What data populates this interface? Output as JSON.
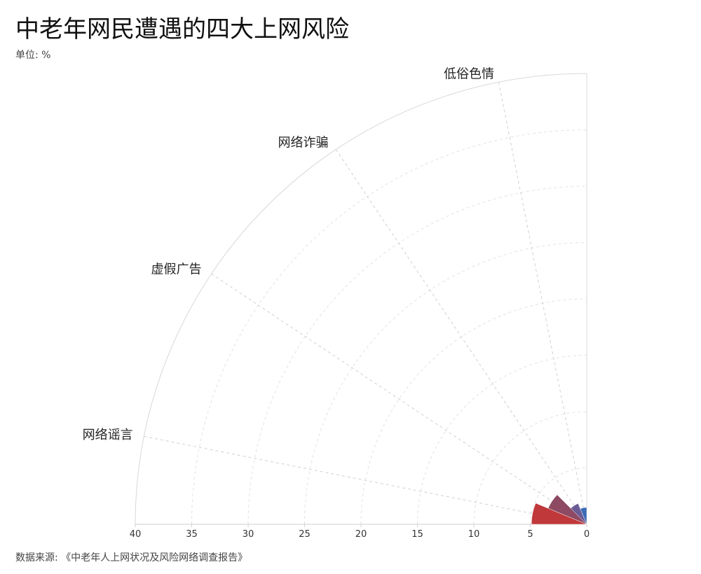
{
  "title": "中老年网民遭遇的四大上网风险",
  "unit_label": "单位: %",
  "source": "数据来源: 《中老年人上网状况及风险网络调查报告》",
  "chart_data": {
    "type": "polar-bar",
    "categories": [
      "网络谣言",
      "虚假广告",
      "网络诈骗",
      "低俗色情"
    ],
    "values": [
      4.9,
      3.7,
      2.0,
      1.5
    ],
    "colors": [
      "#c0383a",
      "#8e4a63",
      "#6a5b95",
      "#3a6bb5"
    ],
    "radial_ticks": [
      "40",
      "35",
      "30",
      "25",
      "20",
      "15",
      "10",
      "5",
      "0"
    ],
    "rmax": 40,
    "grid": true
  }
}
